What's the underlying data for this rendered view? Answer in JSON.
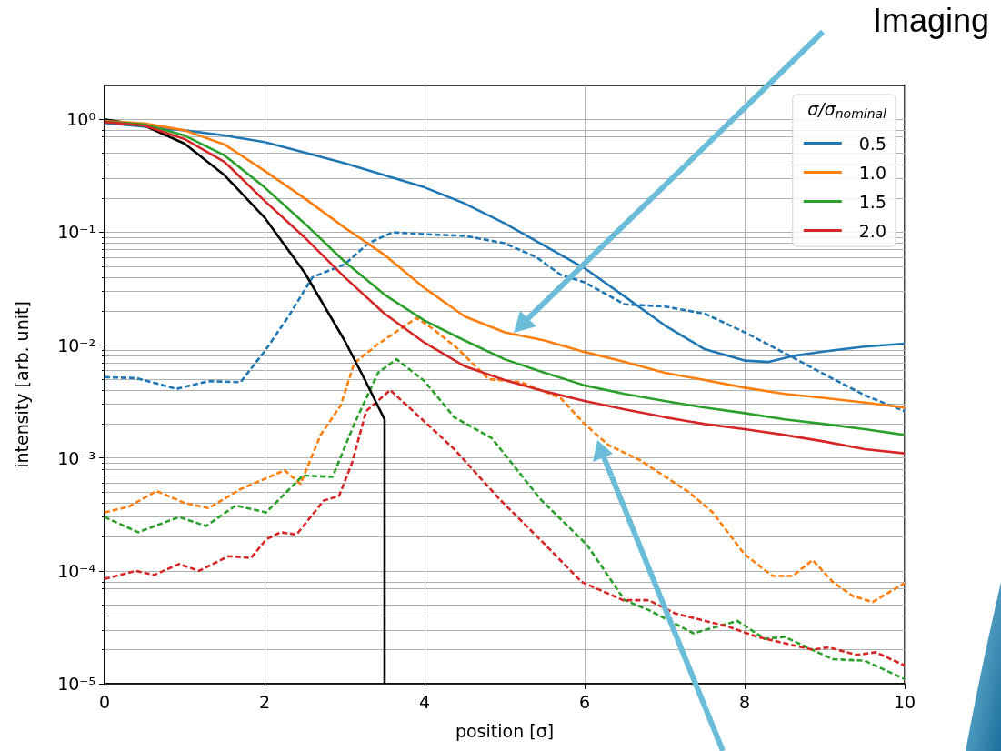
{
  "chart_data": {
    "type": "line",
    "xlabel": "position [σ]",
    "ylabel": "intensity [arb. unit]",
    "legend_title": "σ/σ$_{nominal}$",
    "annotations": [
      "Imaging"
    ],
    "log": "y",
    "grid": true,
    "legend": "top right",
    "marker": "none",
    "xlim": [
      0,
      10
    ],
    "xticks": [
      0,
      2,
      4,
      6,
      8,
      10
    ],
    "ylim": [
      1e-05,
      2
    ],
    "yticks": [
      {
        "value": 1,
        "label": "10⁰"
      },
      {
        "value": 0.1,
        "label": "10⁻¹"
      },
      {
        "value": 0.01,
        "label": "10⁻²"
      },
      {
        "value": 0.001,
        "label": "10⁻³"
      },
      {
        "value": 0.0001,
        "label": "10⁻⁴"
      },
      {
        "value": 1e-05,
        "label": "10⁻⁵"
      }
    ],
    "series": [
      {
        "name": "0.5",
        "color": "#1f77b4",
        "line_style": "solid",
        "x": [
          0,
          1,
          1.5,
          2,
          2.5,
          3,
          3.5,
          4,
          4.5,
          5,
          5.5,
          6,
          6.5,
          7,
          7.5,
          8,
          8.3,
          8.6,
          9,
          9.5,
          10
        ],
        "values": [
          0.93,
          0.8,
          0.72,
          0.63,
          0.51,
          0.41,
          0.32,
          0.25,
          0.18,
          0.12,
          0.076,
          0.048,
          0.027,
          0.015,
          0.0092,
          0.0073,
          0.0071,
          0.008,
          0.0088,
          0.0097,
          0.0103
        ]
      },
      {
        "name": "1.0",
        "color": "#ff7f0e",
        "line_style": "solid",
        "x": [
          0,
          0.5,
          1,
          1.5,
          2,
          2.5,
          3,
          3.5,
          4,
          4.5,
          5,
          5.5,
          6,
          6.5,
          7,
          7.5,
          8,
          8.5,
          9,
          9.5,
          10
        ],
        "values": [
          0.97,
          0.92,
          0.8,
          0.6,
          0.35,
          0.2,
          0.11,
          0.063,
          0.032,
          0.018,
          0.013,
          0.011,
          0.0087,
          0.0071,
          0.0057,
          0.0049,
          0.0042,
          0.0037,
          0.0034,
          0.0031,
          0.0028
        ]
      },
      {
        "name": "1.5",
        "color": "#2ca02c",
        "line_style": "solid",
        "x": [
          0,
          0.5,
          1,
          1.5,
          2,
          2.5,
          3,
          3.5,
          4,
          4.5,
          5,
          5.5,
          6,
          6.5,
          7,
          7.5,
          8,
          8.5,
          9,
          9.5,
          10
        ],
        "values": [
          0.96,
          0.9,
          0.72,
          0.48,
          0.25,
          0.12,
          0.055,
          0.028,
          0.0165,
          0.011,
          0.0075,
          0.0057,
          0.0044,
          0.0037,
          0.0032,
          0.0028,
          0.0025,
          0.0022,
          0.002,
          0.0018,
          0.0016
        ]
      },
      {
        "name": "2.0",
        "color": "#d62728",
        "line_style": "solid",
        "x": [
          0,
          0.5,
          1,
          1.5,
          2,
          2.5,
          3,
          3.5,
          4,
          4.5,
          5,
          5.5,
          6,
          6.5,
          7,
          7.5,
          8,
          8.5,
          9,
          9.5,
          10
        ],
        "values": [
          0.95,
          0.88,
          0.67,
          0.42,
          0.19,
          0.09,
          0.04,
          0.019,
          0.0105,
          0.0065,
          0.0049,
          0.0039,
          0.0032,
          0.0027,
          0.0023,
          0.002,
          0.0018,
          0.0016,
          0.0014,
          0.0012,
          0.0011
        ]
      },
      {
        "color": "#1f77b4",
        "line_style": "dashed",
        "x": [
          0,
          0.4,
          0.9,
          1.3,
          1.7,
          2,
          2.3,
          2.6,
          3,
          3.3,
          3.6,
          4,
          4.5,
          5,
          5.4,
          5.7,
          6,
          6.5,
          7,
          7.5,
          8,
          8.5,
          9,
          9.5,
          10
        ],
        "values": [
          0.0052,
          0.0051,
          0.0041,
          0.0048,
          0.0047,
          0.0088,
          0.018,
          0.04,
          0.052,
          0.08,
          0.1,
          0.096,
          0.093,
          0.08,
          0.06,
          0.042,
          0.036,
          0.023,
          0.022,
          0.019,
          0.013,
          0.0085,
          0.0055,
          0.0036,
          0.0026
        ]
      },
      {
        "color": "#ff7f0e",
        "line_style": "dashed",
        "x": [
          0,
          0.3,
          0.65,
          1,
          1.3,
          1.7,
          2.1,
          2.25,
          2.45,
          2.7,
          2.95,
          3.12,
          3.4,
          3.9,
          4.1,
          4.4,
          4.8,
          5.2,
          5.7,
          6,
          6.3,
          6.7,
          7.3,
          7.6,
          8,
          8.35,
          8.6,
          8.85,
          9.1,
          9.35,
          9.6,
          10
        ],
        "values": [
          0.00033,
          0.00037,
          0.00051,
          0.0004,
          0.00036,
          0.00053,
          0.0007,
          0.00078,
          0.00059,
          0.0016,
          0.0029,
          0.0069,
          0.01,
          0.0174,
          0.014,
          0.0095,
          0.005,
          0.0047,
          0.0034,
          0.002,
          0.0013,
          0.00095,
          0.0005,
          0.00033,
          0.00014,
          9e-05,
          9e-05,
          0.000125,
          8e-05,
          6e-05,
          5.3e-05,
          7.8e-05
        ]
      },
      {
        "color": "#2ca02c",
        "line_style": "dashed",
        "x": [
          0,
          0.42,
          0.93,
          1.27,
          1.64,
          2.02,
          2.48,
          2.85,
          3.12,
          3.42,
          3.65,
          4,
          4.37,
          4.84,
          5.45,
          6.03,
          6.5,
          6.8,
          7.36,
          7.91,
          8.25,
          8.5,
          9.1,
          9.5,
          10
        ],
        "values": [
          0.0003,
          0.00022,
          0.0003,
          0.00025,
          0.00038,
          0.00033,
          0.0007,
          0.00068,
          0.002,
          0.0057,
          0.0075,
          0.0048,
          0.0023,
          0.0015,
          0.00043,
          0.00017,
          5.5e-05,
          4.5e-05,
          2.8e-05,
          3.6e-05,
          2.5e-05,
          2.6e-05,
          1.65e-05,
          1.6e-05,
          1.1e-05
        ]
      },
      {
        "color": "#d62728",
        "line_style": "dashed",
        "x": [
          0,
          0.39,
          0.62,
          0.93,
          1.18,
          1.55,
          1.83,
          2.02,
          2.2,
          2.4,
          2.74,
          2.93,
          3.09,
          3.27,
          3.57,
          4,
          4.37,
          4.94,
          5.51,
          5.96,
          6.48,
          6.8,
          7.13,
          7.8,
          8.16,
          8.85,
          9.05,
          9.4,
          9.64,
          10
        ],
        "values": [
          8.5e-05,
          0.0001,
          9.2e-05,
          0.000115,
          0.0001,
          0.000135,
          0.00013,
          0.00019,
          0.00022,
          0.00021,
          0.00042,
          0.00046,
          0.00089,
          0.0026,
          0.004,
          0.0021,
          0.0012,
          0.00043,
          0.00017,
          8e-05,
          5.5e-05,
          5.5e-05,
          4.2e-05,
          3.2e-05,
          2.6e-05,
          2e-05,
          2.1e-05,
          1.8e-05,
          1.9e-05,
          1.45e-05
        ]
      },
      {
        "color": "#000000",
        "line_style": "solid",
        "x": [
          0,
          0.5,
          1,
          1.5,
          2,
          2.5,
          3,
          3.25,
          3.5,
          3.5
        ],
        "values": [
          1,
          0.88,
          0.61,
          0.32,
          0.135,
          0.044,
          0.011,
          0.005,
          0.0022,
          1e-05
        ]
      }
    ]
  }
}
